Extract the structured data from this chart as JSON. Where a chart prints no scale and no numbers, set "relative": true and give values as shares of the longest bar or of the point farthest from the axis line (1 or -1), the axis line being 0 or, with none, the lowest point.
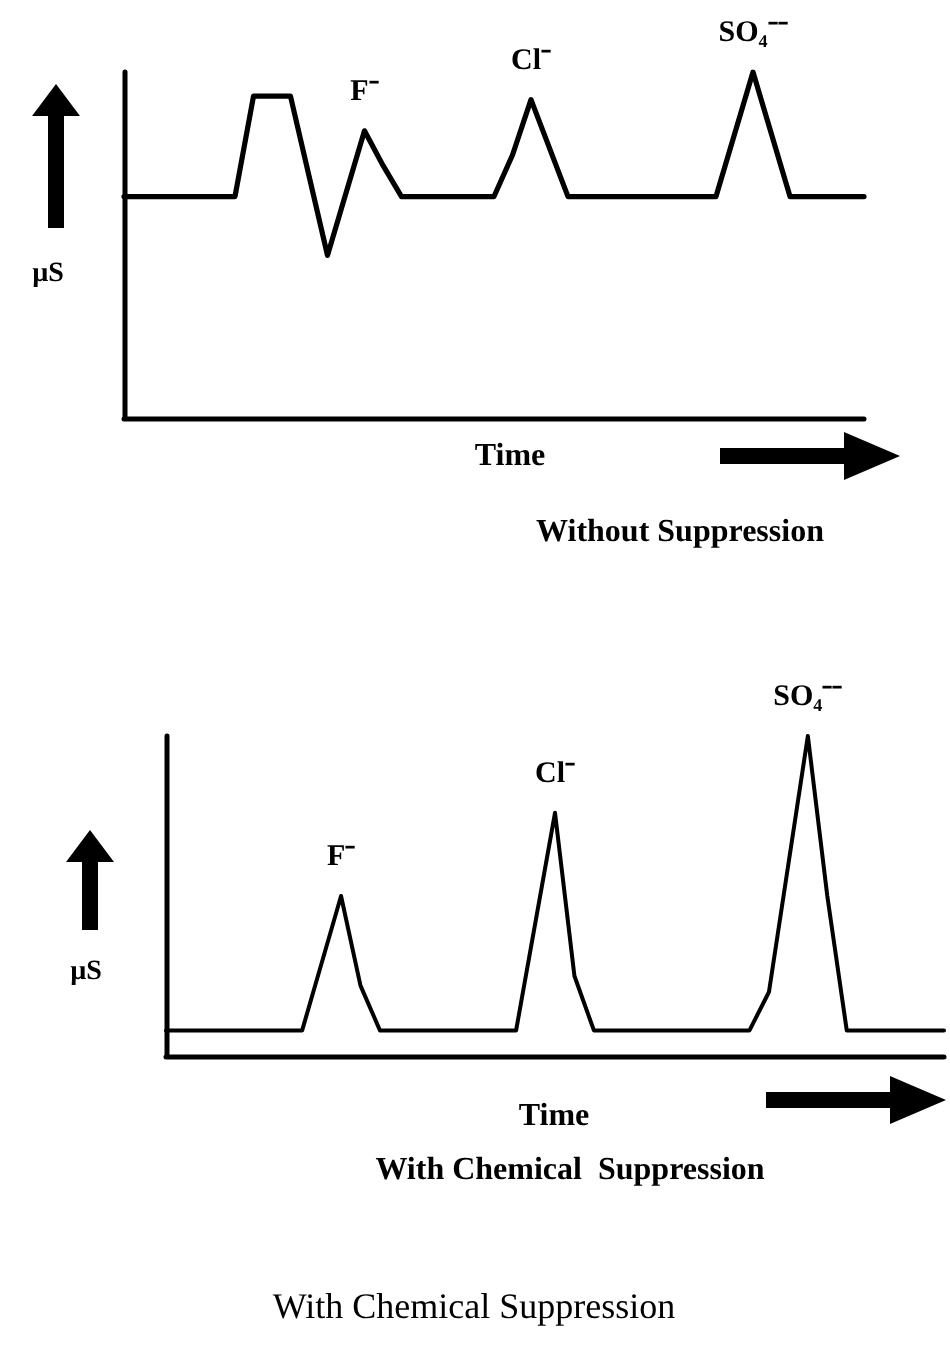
{
  "chart_data": [
    {
      "type": "line",
      "relative": true,
      "title": "Without Suppression",
      "xlabel": "Time",
      "ylabel": "µS",
      "marker": "none",
      "line_style": "solid",
      "grid": false,
      "categories": [
        null,
        null,
        null,
        null,
        null,
        null,
        null,
        null,
        null,
        null,
        null,
        null,
        null,
        null,
        null,
        null,
        null,
        null,
        null,
        null,
        null,
        null,
        null,
        null,
        null,
        null,
        null,
        null,
        null,
        null,
        null,
        null,
        null,
        null,
        null,
        null,
        null,
        null,
        null,
        null,
        null
      ],
      "series": [
        {
          "color": "#000000",
          "values": [
            0.64,
            0.64,
            0.64,
            0.64,
            0.64,
            0.64,
            0.64,
            0.93,
            0.93,
            0.93,
            0.7,
            0.47,
            0.65,
            0.83,
            0.73,
            0.64,
            0.64,
            0.64,
            0.64,
            0.64,
            0.64,
            0.76,
            0.92,
            0.78,
            0.64,
            0.64,
            0.64,
            0.64,
            0.64,
            0.64,
            0.64,
            0.64,
            0.64,
            0.82,
            1.0,
            0.82,
            0.64,
            0.64,
            0.64,
            0.64,
            0.64
          ]
        }
      ],
      "annotations": [
        {
          "text": "F⁻",
          "y": 0.83
        },
        {
          "text": "Cl⁻",
          "y": 0.92
        },
        {
          "text": "SO₄⁻⁻",
          "y": 1.0
        }
      ]
    },
    {
      "type": "line",
      "relative": true,
      "title": "With Chemical  Suppression",
      "xlabel": "Time",
      "ylabel": "µS",
      "marker": "none",
      "line_style": "solid",
      "grid": false,
      "categories": [
        null,
        null,
        null,
        null,
        null,
        null,
        null,
        null,
        null,
        null,
        null,
        null,
        null,
        null,
        null,
        null,
        null,
        null,
        null,
        null,
        null,
        null,
        null,
        null,
        null,
        null,
        null,
        null,
        null,
        null,
        null,
        null,
        null,
        null,
        null,
        null,
        null,
        null,
        null,
        null,
        null
      ],
      "series": [
        {
          "color": "#000000",
          "values": [
            0.08,
            0.08,
            0.08,
            0.08,
            0.08,
            0.08,
            0.08,
            0.08,
            0.29,
            0.5,
            0.22,
            0.08,
            0.08,
            0.08,
            0.08,
            0.08,
            0.08,
            0.08,
            0.08,
            0.42,
            0.76,
            0.25,
            0.08,
            0.08,
            0.08,
            0.08,
            0.08,
            0.08,
            0.08,
            0.08,
            0.08,
            0.2,
            0.6,
            1.0,
            0.5,
            0.08,
            0.08,
            0.08,
            0.08,
            0.08,
            0.08
          ]
        }
      ],
      "annotations": [
        {
          "text": "F⁻",
          "y": 0.5
        },
        {
          "text": "Cl⁻",
          "y": 0.76
        },
        {
          "text": "SO₄⁻⁻",
          "y": 1.0
        },
        "With Chemical Suppression"
      ]
    }
  ]
}
